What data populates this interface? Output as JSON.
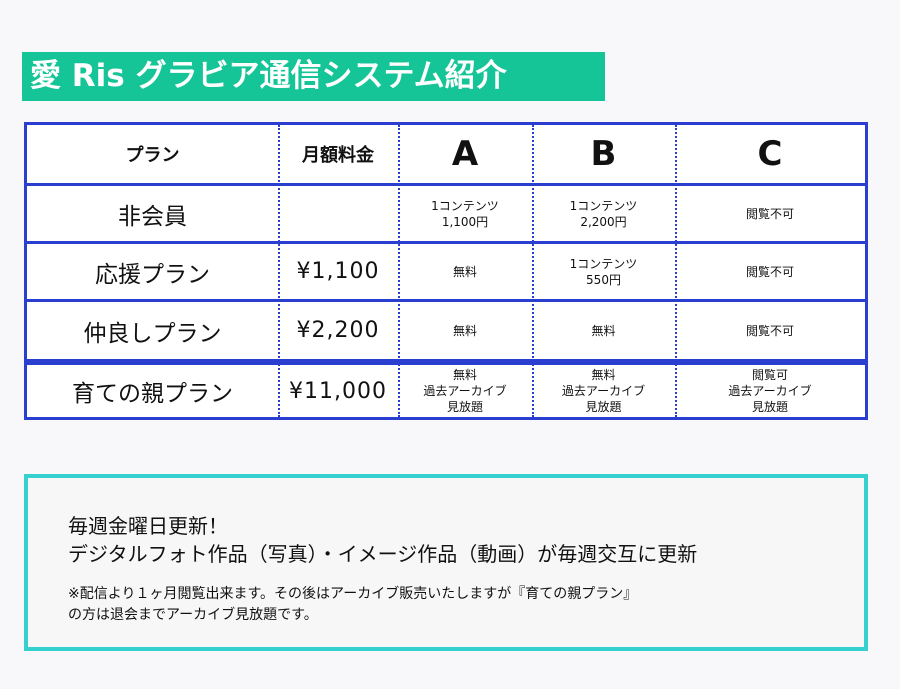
{
  "title": "愛 Ris グラビア通信システム紹介",
  "table": {
    "headers": [
      "プラン",
      "月額料金",
      "A",
      "B",
      "C"
    ],
    "rows": [
      {
        "plan": "非会員",
        "price": "",
        "a": [
          "1コンテンツ",
          "1,100円"
        ],
        "b": [
          "1コンテンツ",
          "2,200円"
        ],
        "c": [
          "閲覧不可"
        ]
      },
      {
        "plan": "応援プラン",
        "price": "¥1,100",
        "a": [
          "無料"
        ],
        "b": [
          "1コンテンツ",
          "550円"
        ],
        "c": [
          "閲覧不可"
        ]
      },
      {
        "plan": "仲良しプラン",
        "price": "¥2,200",
        "a": [
          "無料"
        ],
        "b": [
          "無料"
        ],
        "c": [
          "閲覧不可"
        ]
      },
      {
        "plan": "育ての親プラン",
        "price": "¥11,000",
        "a": [
          "無料",
          "過去アーカイブ",
          "見放題"
        ],
        "b": [
          "無料",
          "過去アーカイブ",
          "見放題"
        ],
        "c": [
          "閲覧可",
          "過去アーカイブ",
          "見放題"
        ]
      }
    ]
  },
  "info": {
    "line1": "毎週金曜日更新！",
    "line2": "デジタルフォト作品（写真）・イメージ作品（動画）が毎週交互に更新",
    "note1": "※配信より１ヶ月閲覧出来ます。その後はアーカイブ販売いたしますが『育ての親プラン』",
    "note2": "の方は退会までアーカイブ見放題です。"
  },
  "colors": {
    "banner": "#16c597",
    "table_border": "#2a3fcf",
    "info_border": "#35d0d0"
  }
}
